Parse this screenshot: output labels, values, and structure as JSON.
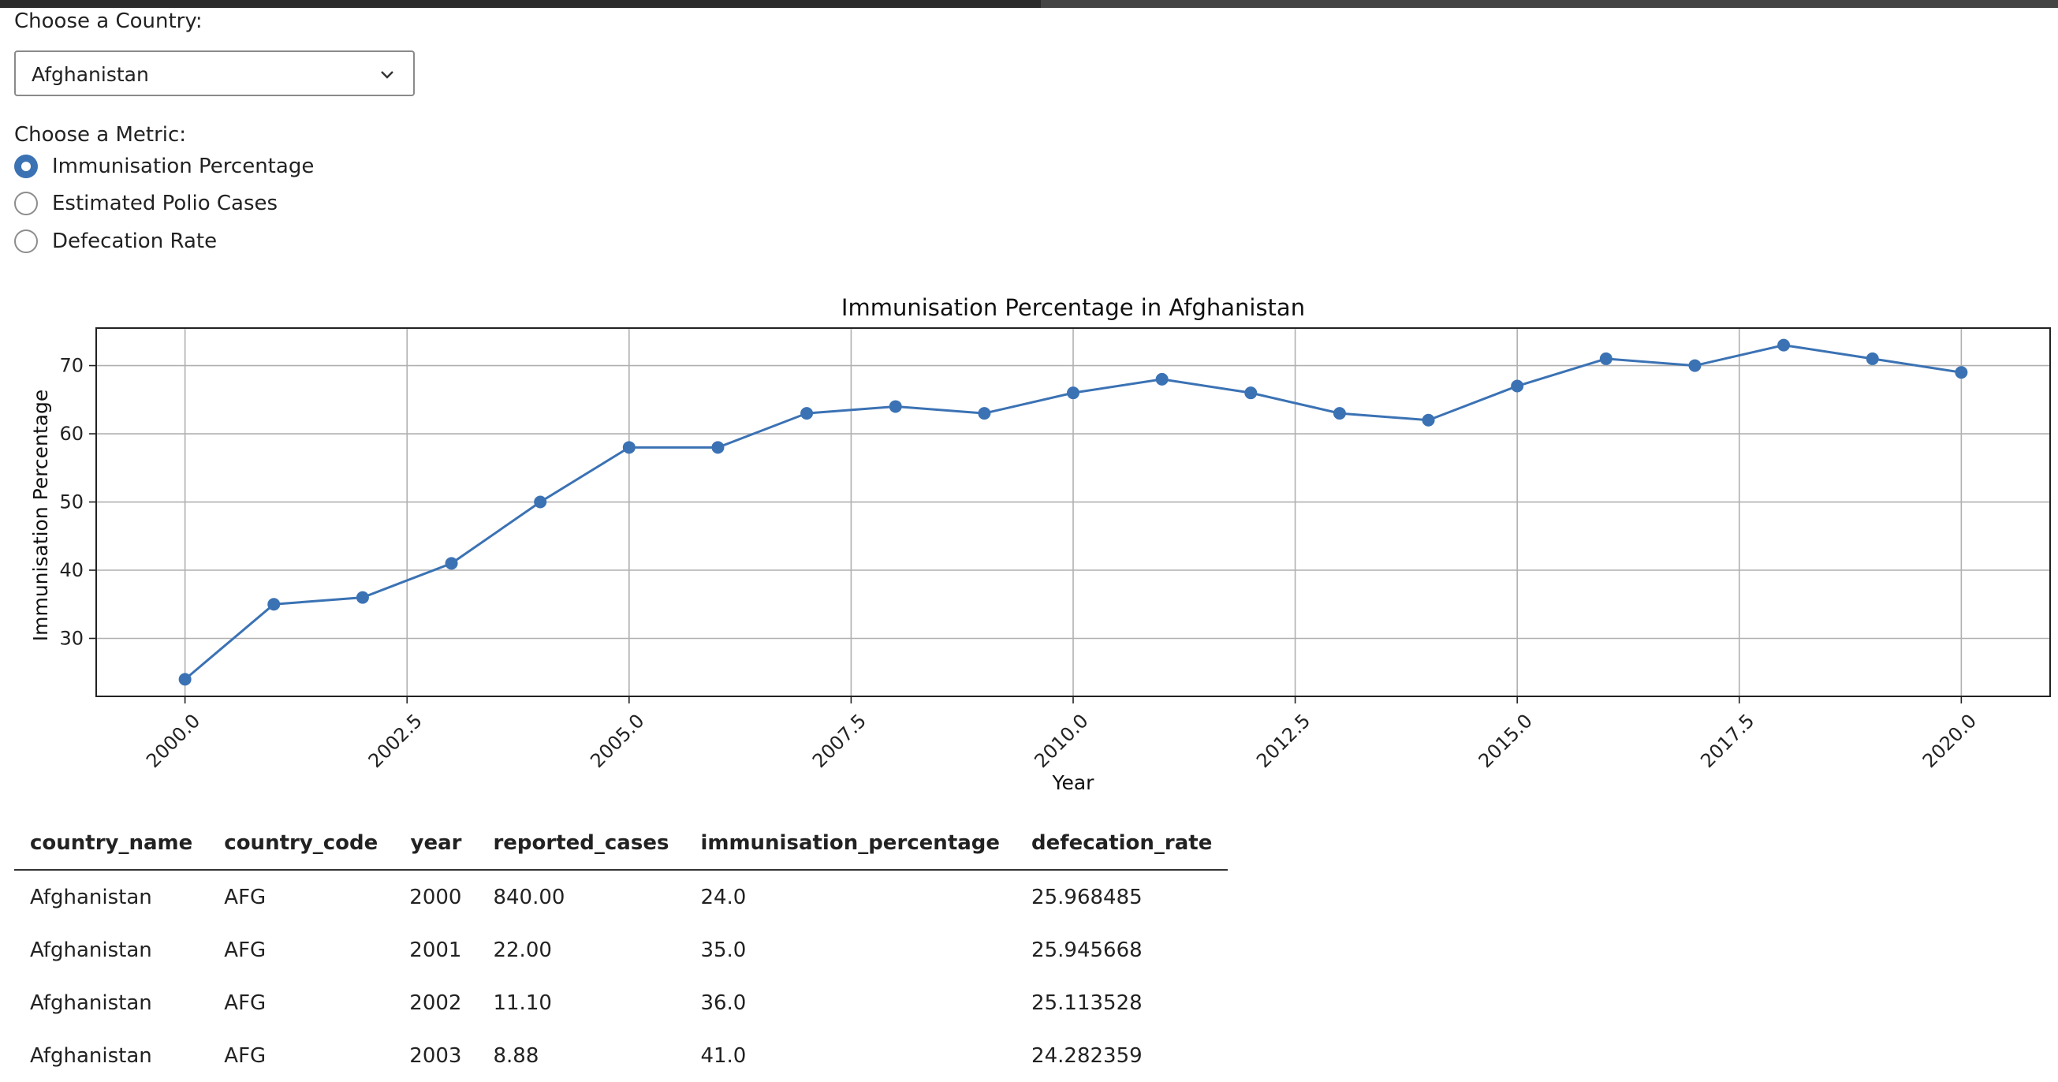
{
  "country_select": {
    "label": "Choose a Country:",
    "value": "Afghanistan"
  },
  "metric": {
    "label": "Choose a Metric:",
    "options": [
      {
        "label": "Immunisation Percentage",
        "selected": true
      },
      {
        "label": "Estimated Polio Cases",
        "selected": false
      },
      {
        "label": "Defecation Rate",
        "selected": false
      }
    ]
  },
  "chart_data": {
    "type": "line",
    "title": "Immunisation Percentage in Afghanistan",
    "xlabel": "Year",
    "ylabel": "Immunisation Percentage",
    "x": [
      2000,
      2001,
      2002,
      2003,
      2004,
      2005,
      2006,
      2007,
      2008,
      2009,
      2010,
      2011,
      2012,
      2013,
      2014,
      2015,
      2016,
      2017,
      2018,
      2019,
      2020
    ],
    "values": [
      24,
      35,
      36,
      41,
      50,
      58,
      58,
      63,
      64,
      63,
      66,
      68,
      66,
      63,
      62,
      67,
      71,
      70,
      73,
      71,
      69
    ],
    "xticks": [
      "2000.0",
      "2002.5",
      "2005.0",
      "2007.5",
      "2010.0",
      "2012.5",
      "2015.0",
      "2017.5",
      "2020.0"
    ],
    "yticks": [
      "30",
      "40",
      "50",
      "60",
      "70"
    ],
    "xlim": [
      1999,
      2021
    ],
    "ylim": [
      21.5,
      75.5
    ],
    "grid": true,
    "line_color": "#3b72b4"
  },
  "table": {
    "columns": [
      "country_name",
      "country_code",
      "year",
      "reported_cases",
      "immunisation_percentage",
      "defecation_rate"
    ],
    "rows": [
      [
        "Afghanistan",
        "AFG",
        "2000",
        "840.00",
        "24.0",
        "25.968485"
      ],
      [
        "Afghanistan",
        "AFG",
        "2001",
        "22.00",
        "35.0",
        "25.945668"
      ],
      [
        "Afghanistan",
        "AFG",
        "2002",
        "11.10",
        "36.0",
        "25.113528"
      ],
      [
        "Afghanistan",
        "AFG",
        "2003",
        "8.88",
        "41.0",
        "24.282359"
      ]
    ]
  }
}
